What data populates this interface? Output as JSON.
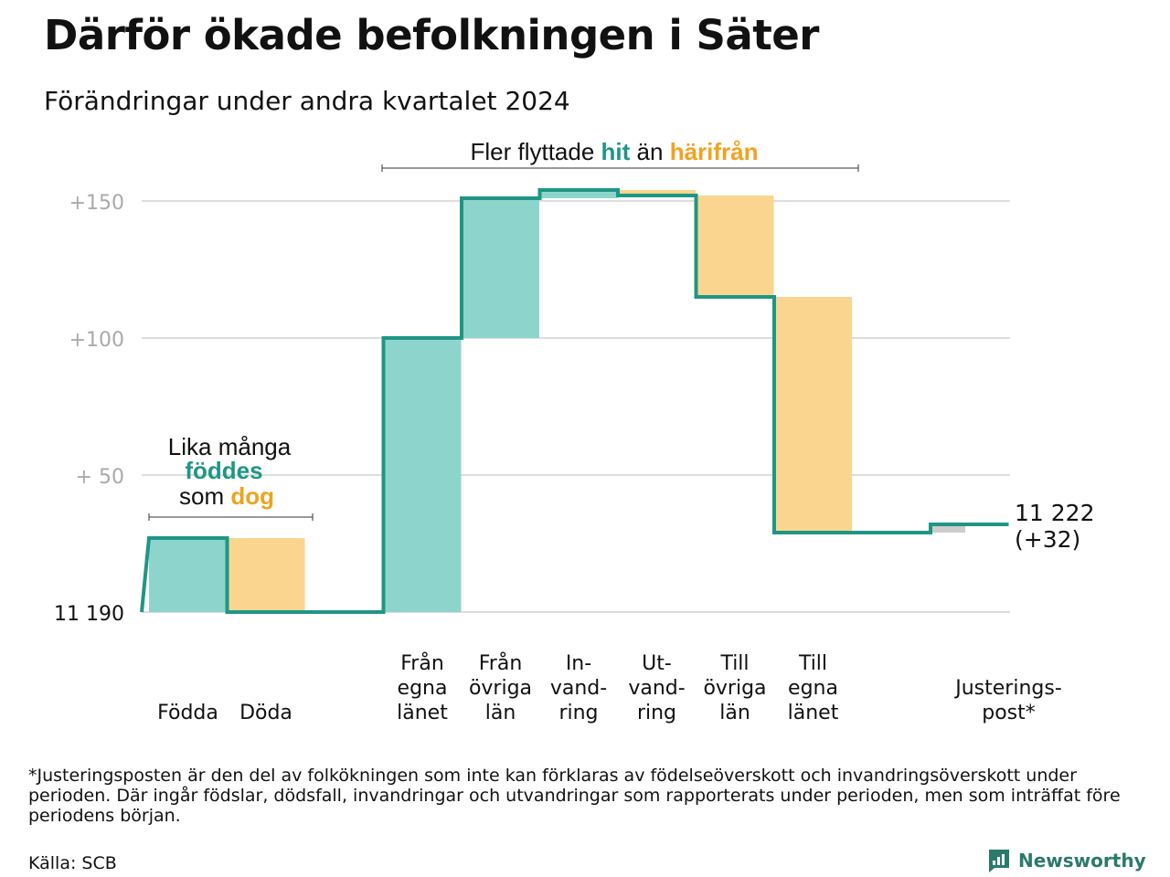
{
  "header": {
    "title": "Därför ökade befolkningen i Säter",
    "subtitle": "Förändringar under andra kvartalet 2024"
  },
  "annotations": {
    "top_prefix": "Fler flyttade",
    "top_hit": "hit",
    "top_mid": "än",
    "top_harifran": "härifrån",
    "left_line1": "Lika många",
    "left_fodde": "föddes",
    "left_som": "som",
    "left_dog": "dog"
  },
  "end_label": {
    "value": "11 222",
    "change": "(+32)"
  },
  "footnote": "*Justeringsposten är den del av folkökningen som inte kan förklaras av födelseöverskott och invandringsöverskott under perioden. Där ingår födslar, dödsfall, invandringar och utvandringar som rapporterats under perioden, men som inträffat före periodens början.",
  "source": "Källa: SCB",
  "brand": {
    "name": "Newsworthy",
    "icon": "newsworthy-logo-icon"
  },
  "colors": {
    "increase": "#8dd5cc",
    "decrease": "#fad58f",
    "adjustment": "#cccccc",
    "line": "#1f9684",
    "teal_text": "#1f9684",
    "orange_text": "#f0a21f",
    "grid": "#dddddd",
    "axis_text": "#aaaaaa"
  },
  "chart_data": {
    "type": "waterfall",
    "base": 11190,
    "end_value": 11222,
    "yticks": [
      {
        "value": 0,
        "label": "11  190"
      },
      {
        "value": 50,
        "label": "+  50"
      },
      {
        "value": 100,
        "label": "+100"
      },
      {
        "value": 150,
        "label": "+150"
      }
    ],
    "ylim": [
      0,
      165
    ],
    "categories": [
      {
        "label": [
          "Födda"
        ],
        "change": 27,
        "kind": "increase"
      },
      {
        "label": [
          "Döda"
        ],
        "change": -27,
        "kind": "decrease"
      },
      {
        "label": [],
        "change": 0,
        "kind": "gap"
      },
      {
        "label": [
          "Från",
          "egna",
          "länet"
        ],
        "change": 100,
        "kind": "increase"
      },
      {
        "label": [
          "Från",
          "övriga",
          "län"
        ],
        "change": 51,
        "kind": "increase"
      },
      {
        "label": [
          "In-",
          "vand-",
          "ring"
        ],
        "change": 3,
        "kind": "increase"
      },
      {
        "label": [
          "Ut-",
          "vand-",
          "ring"
        ],
        "change": -2,
        "kind": "decrease"
      },
      {
        "label": [
          "Till",
          "övriga",
          "län"
        ],
        "change": -37,
        "kind": "decrease"
      },
      {
        "label": [
          "Till",
          "egna",
          "länet"
        ],
        "change": -86,
        "kind": "decrease"
      },
      {
        "label": [],
        "change": 0,
        "kind": "gap"
      },
      {
        "label": [
          "Justerings-",
          "post*"
        ],
        "change": 3,
        "kind": "adjustment"
      }
    ]
  }
}
